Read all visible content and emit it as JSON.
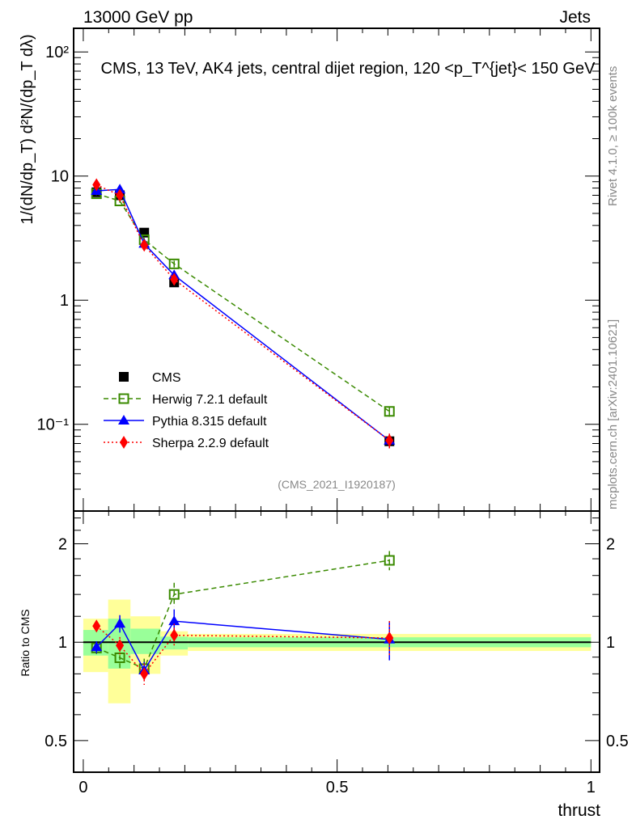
{
  "header": {
    "left": "13000 GeV pp",
    "right": "Jets"
  },
  "side_text": {
    "rivet": "Rivet 4.1.0, ≥ 100k events",
    "mcplots": "mcplots.cern.ch [arXiv:2401.10621]"
  },
  "chart_data": [
    {
      "type": "line",
      "title": "CMS, 13 TeV, AK4 jets, central dijet region, 120 <p_T^{jet}< 150 GeV",
      "analysis_label": "(CMS_2021_I1920187)",
      "ylabel": "1/(dN/dp_T) d²N/(dp_T dλ)",
      "yscale": "log",
      "ylim": [
        0.02,
        155
      ],
      "xlim": [
        -0.019,
        1.017
      ],
      "ytick_labels": [
        {
          "v": 0.1,
          "label": "10⁻¹"
        },
        {
          "v": 1,
          "label": "1"
        },
        {
          "v": 10,
          "label": "10"
        },
        {
          "v": 100,
          "label": "10²"
        }
      ],
      "x": [
        0.026,
        0.072,
        0.12,
        0.179,
        0.603
      ],
      "legend_position": "bottom-left",
      "series": [
        {
          "name": "CMS",
          "color": "#000000",
          "marker": "square",
          "line": "none",
          "values": [
            7.4,
            7.0,
            3.5,
            1.39,
            0.073
          ],
          "err": [
            0.3,
            0.3,
            0.15,
            0.07,
            0.005
          ]
        },
        {
          "name": "Herwig 7.2.1 default",
          "color": "#3a8a00",
          "marker": "open-square",
          "line": "dashed",
          "values": [
            7.2,
            6.3,
            3.07,
            1.96,
            0.127
          ],
          "err": [
            0.2,
            0.2,
            0.1,
            0.12,
            0.012
          ]
        },
        {
          "name": "Pythia 8.315 default",
          "color": "#0000ff",
          "marker": "triangle",
          "line": "solid",
          "values": [
            7.6,
            7.8,
            2.85,
            1.59,
            0.074
          ],
          "err": [
            0.2,
            0.2,
            0.1,
            0.12,
            0.01
          ]
        },
        {
          "name": "Sherpa 2.2.9 default",
          "color": "#ff0000",
          "marker": "diamond",
          "line": "dotted",
          "values": [
            8.5,
            7.0,
            2.77,
            1.47,
            0.074
          ],
          "err": [
            0.2,
            0.2,
            0.12,
            0.12,
            0.01
          ]
        }
      ]
    },
    {
      "type": "line",
      "ylabel": "Ratio to CMS",
      "xlabel": "thrust",
      "yscale": "log",
      "ylim": [
        0.4,
        2.52
      ],
      "xlim": [
        -0.019,
        1.017
      ],
      "ytick_labels": [
        {
          "v": 0.5,
          "label": "0.5"
        },
        {
          "v": 1,
          "label": "1"
        },
        {
          "v": 2,
          "label": "2"
        }
      ],
      "xtick_labels": [
        {
          "v": 0,
          "label": "0"
        },
        {
          "v": 0.5,
          "label": "0.5"
        },
        {
          "v": 1,
          "label": "1"
        }
      ],
      "bin_edges": [
        0,
        0.049,
        0.093,
        0.152,
        0.206,
        1.0
      ],
      "band_inner": [
        [
          0.91,
          1.09
        ],
        [
          0.83,
          1.18
        ],
        [
          0.92,
          1.1
        ],
        [
          0.95,
          1.04
        ],
        [
          0.965,
          1.035
        ]
      ],
      "band_outer": [
        [
          0.81,
          1.18
        ],
        [
          0.65,
          1.35
        ],
        [
          0.8,
          1.2
        ],
        [
          0.91,
          1.08
        ],
        [
          0.94,
          1.06
        ]
      ],
      "x": [
        0.026,
        0.072,
        0.12,
        0.179,
        0.603
      ],
      "series": [
        {
          "name": "Herwig 7.2.1 default",
          "values": [
            0.96,
            0.896,
            0.83,
            1.4,
            1.78
          ],
          "err": [
            0.04,
            0.07,
            0.06,
            0.12,
            0.12
          ]
        },
        {
          "name": "Pythia 8.315 default",
          "values": [
            0.966,
            1.14,
            0.82,
            1.16,
            1.02
          ],
          "err": [
            0.04,
            0.07,
            0.05,
            0.1,
            0.14
          ]
        },
        {
          "name": "Sherpa 2.2.9 default",
          "values": [
            1.12,
            0.977,
            0.8,
            1.05,
            1.03
          ],
          "err": [
            0.04,
            0.06,
            0.06,
            0.09,
            0.13
          ]
        }
      ]
    }
  ]
}
